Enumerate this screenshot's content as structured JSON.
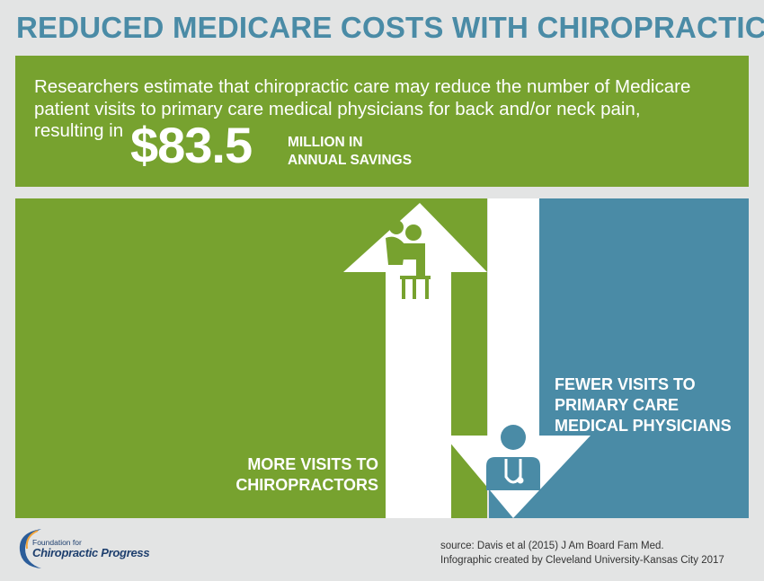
{
  "title": "REDUCED MEDICARE COSTS WITH CHIROPRACTIC",
  "intro": {
    "line1": "Researchers estimate that chiropractic care may reduce the number of Medicare",
    "line2": "patient visits to primary care medical physicians for back and/or neck pain,",
    "line3": "resulting in"
  },
  "savings": {
    "amount": "$83.5",
    "caption_line1": "MILLION IN",
    "caption_line2": "ANNUAL SAVINGS"
  },
  "more_visits": {
    "line1": "MORE VISITS TO",
    "line2": "CHIROPRACTORS"
  },
  "fewer_visits": {
    "line1": "FEWER VISITS TO",
    "line2": "PRIMARY CARE",
    "line3": "MEDICAL PHYSICIANS"
  },
  "logo": {
    "small": "Foundation for",
    "big": "Chiropractic Progress"
  },
  "source": {
    "line1": "source: Davis et al (2015) J Am Board Fam Med.",
    "line2": "Infographic created by Cleveland University-Kansas City 2017"
  },
  "colors": {
    "title": "#4a8ba6",
    "green": "#77a22f",
    "blue": "#4a8ba6",
    "background": "#e3e4e4"
  }
}
